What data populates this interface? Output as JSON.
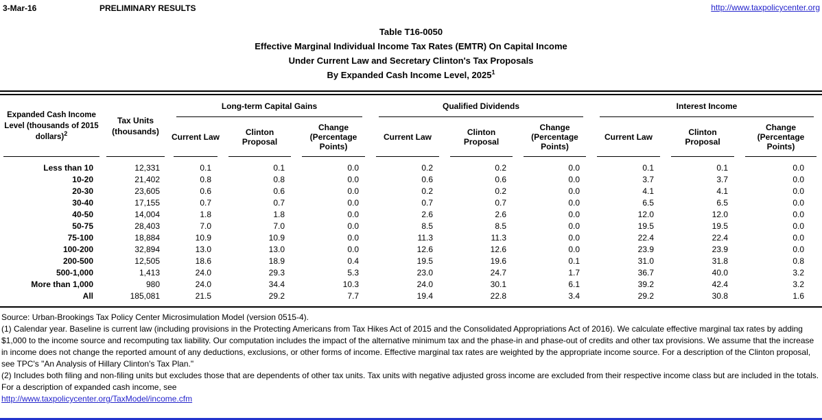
{
  "page": {
    "date": "3-Mar-16",
    "status": "PRELIMINARY RESULTS",
    "site_url": "http://www.taxpolicycenter.org"
  },
  "title": {
    "line1": "Table T16-0050",
    "line2": "Effective Marginal Individual Income Tax Rates (EMTR) On Capital Income",
    "line3": "Under Current Law and Secretary Clinton's Tax Proposals",
    "line4": "By Expanded Cash Income Level, 2025",
    "line4_sup": "1"
  },
  "table": {
    "col1_header_lines": [
      "Expanded Cash Income",
      "Level (thousands of 2015",
      "dollars)"
    ],
    "col1_header_sup": "2",
    "col2_header_lines": [
      "Tax Units",
      "(thousands)"
    ],
    "groups": [
      "Long-term Capital Gains",
      "Qualified Dividends",
      "Interest Income"
    ],
    "sub_headers": [
      "Current Law",
      "Clinton Proposal",
      "Change (Percentage Points)"
    ],
    "rows": [
      {
        "label": "Less than 10",
        "tax_units": "12,331",
        "values": [
          "0.1",
          "0.1",
          "0.0",
          "0.2",
          "0.2",
          "0.0",
          "0.1",
          "0.1",
          "0.0"
        ]
      },
      {
        "label": "10-20",
        "tax_units": "21,402",
        "values": [
          "0.8",
          "0.8",
          "0.0",
          "0.6",
          "0.6",
          "0.0",
          "3.7",
          "3.7",
          "0.0"
        ]
      },
      {
        "label": "20-30",
        "tax_units": "23,605",
        "values": [
          "0.6",
          "0.6",
          "0.0",
          "0.2",
          "0.2",
          "0.0",
          "4.1",
          "4.1",
          "0.0"
        ]
      },
      {
        "label": "30-40",
        "tax_units": "17,155",
        "values": [
          "0.7",
          "0.7",
          "0.0",
          "0.7",
          "0.7",
          "0.0",
          "6.5",
          "6.5",
          "0.0"
        ]
      },
      {
        "label": "40-50",
        "tax_units": "14,004",
        "values": [
          "1.8",
          "1.8",
          "0.0",
          "2.6",
          "2.6",
          "0.0",
          "12.0",
          "12.0",
          "0.0"
        ]
      },
      {
        "label": "50-75",
        "tax_units": "28,403",
        "values": [
          "7.0",
          "7.0",
          "0.0",
          "8.5",
          "8.5",
          "0.0",
          "19.5",
          "19.5",
          "0.0"
        ]
      },
      {
        "label": "75-100",
        "tax_units": "18,884",
        "values": [
          "10.9",
          "10.9",
          "0.0",
          "11.3",
          "11.3",
          "0.0",
          "22.4",
          "22.4",
          "0.0"
        ]
      },
      {
        "label": "100-200",
        "tax_units": "32,894",
        "values": [
          "13.0",
          "13.0",
          "0.0",
          "12.6",
          "12.6",
          "0.0",
          "23.9",
          "23.9",
          "0.0"
        ]
      },
      {
        "label": "200-500",
        "tax_units": "12,505",
        "values": [
          "18.6",
          "18.9",
          "0.4",
          "19.5",
          "19.6",
          "0.1",
          "31.0",
          "31.8",
          "0.8"
        ]
      },
      {
        "label": "500-1,000",
        "tax_units": "1,413",
        "values": [
          "24.0",
          "29.3",
          "5.3",
          "23.0",
          "24.7",
          "1.7",
          "36.7",
          "40.0",
          "3.2"
        ]
      },
      {
        "label": "More than 1,000",
        "tax_units": "980",
        "values": [
          "24.0",
          "34.4",
          "10.3",
          "24.0",
          "30.1",
          "6.1",
          "39.2",
          "42.4",
          "3.2"
        ]
      },
      {
        "label": "All",
        "tax_units": "185,081",
        "values": [
          "21.5",
          "29.2",
          "7.7",
          "19.4",
          "22.8",
          "3.4",
          "29.2",
          "30.8",
          "1.6"
        ]
      }
    ]
  },
  "footnotes": {
    "source": "Source: Urban-Brookings Tax Policy Center Microsimulation Model (version 0515-4).",
    "note1": "(1) Calendar year. Baseline is current law (including provisions in the Protecting Americans from Tax Hikes Act of 2015 and the Consolidated Appropriations Act of 2016). We calculate effective marginal tax rates by adding $1,000 to the income source and recomputing tax liability. Our computation includes the impact of the alternative minimum tax and the phase-in and phase-out of credits and other tax provisions. We assume that the increase in income does not change the reported amount of any deductions, exclusions, or other forms of income. Effective marginal tax rates are weighted by the appropriate income source. For a description of the Clinton proposal, see TPC's \"An Analysis of Hillary Clinton's Tax Plan.\"",
    "note2": "(2) Includes both filing and non-filing units but excludes those that are dependents of other tax units. Tax units with negative adjusted gross income are excluded from their respective income class but are included in the totals. For a description of expanded cash income, see",
    "link": "http://www.taxpolicycenter.org/TaxModel/income.cfm"
  },
  "colors": {
    "text": "#000000",
    "link_blue": "#2222cc",
    "bottom_bar_blue": "#2233cc"
  }
}
